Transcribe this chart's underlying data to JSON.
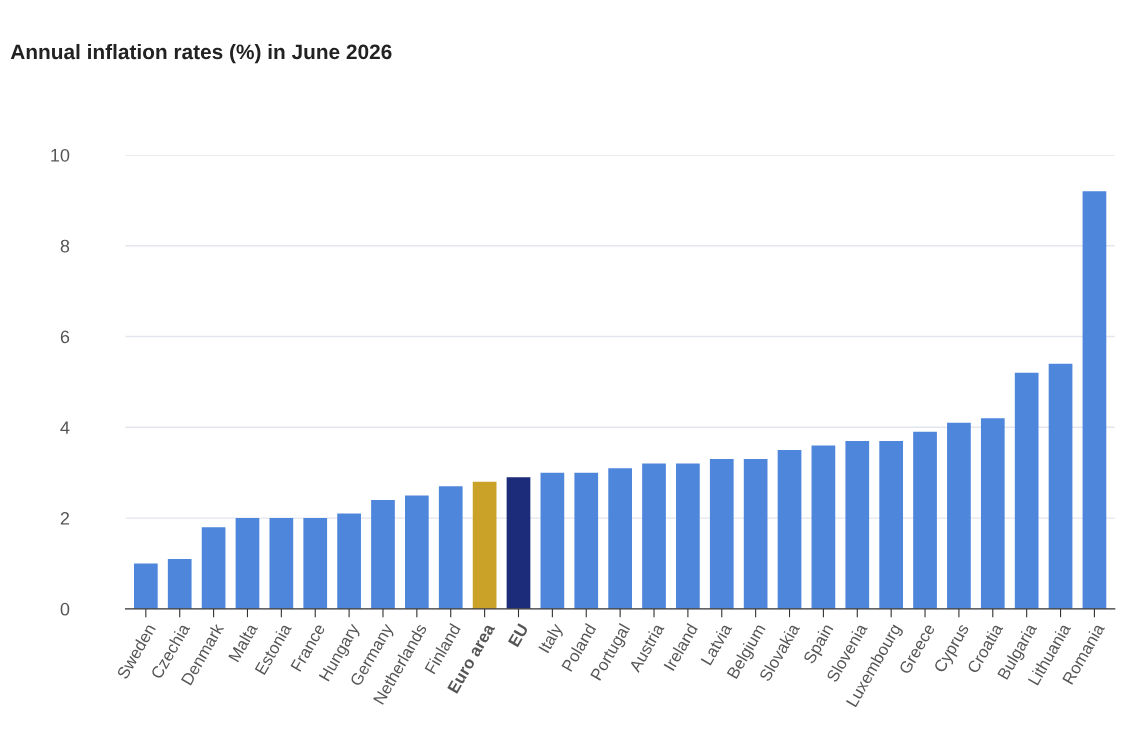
{
  "chart_data": {
    "type": "bar",
    "title": "Annual inflation rates (%) in June 2026",
    "categories": [
      "Sweden",
      "Czechia",
      "Denmark",
      "Malta",
      "Estonia",
      "France",
      "Hungary",
      "Germany",
      "Netherlands",
      "Finland",
      "Euro area",
      "EU",
      "Italy",
      "Poland",
      "Portugal",
      "Austria",
      "Ireland",
      "Latvia",
      "Belgium",
      "Slovakia",
      "Spain",
      "Slovenia",
      "Luxembourg",
      "Greece",
      "Cyprus",
      "Croatia",
      "Bulgaria",
      "Lithuania",
      "Romania"
    ],
    "values": [
      1.0,
      1.1,
      1.8,
      2.0,
      2.0,
      2.0,
      2.1,
      2.4,
      2.5,
      2.7,
      2.8,
      2.9,
      3.0,
      3.0,
      3.1,
      3.2,
      3.2,
      3.3,
      3.3,
      3.5,
      3.6,
      3.7,
      3.7,
      3.9,
      4.1,
      4.2,
      5.2,
      5.4,
      9.2
    ],
    "colors": [
      "#4e86dc",
      "#4e86dc",
      "#4e86dc",
      "#4e86dc",
      "#4e86dc",
      "#4e86dc",
      "#4e86dc",
      "#4e86dc",
      "#4e86dc",
      "#4e86dc",
      "#c9a227",
      "#1c2b7a",
      "#4e86dc",
      "#4e86dc",
      "#4e86dc",
      "#4e86dc",
      "#4e86dc",
      "#4e86dc",
      "#4e86dc",
      "#4e86dc",
      "#4e86dc",
      "#4e86dc",
      "#4e86dc",
      "#4e86dc",
      "#4e86dc",
      "#4e86dc",
      "#4e86dc",
      "#4e86dc",
      "#4e86dc"
    ],
    "ylim": [
      0,
      10
    ],
    "yticks": [
      0,
      2,
      4,
      6,
      8,
      10
    ],
    "grid": "y"
  }
}
